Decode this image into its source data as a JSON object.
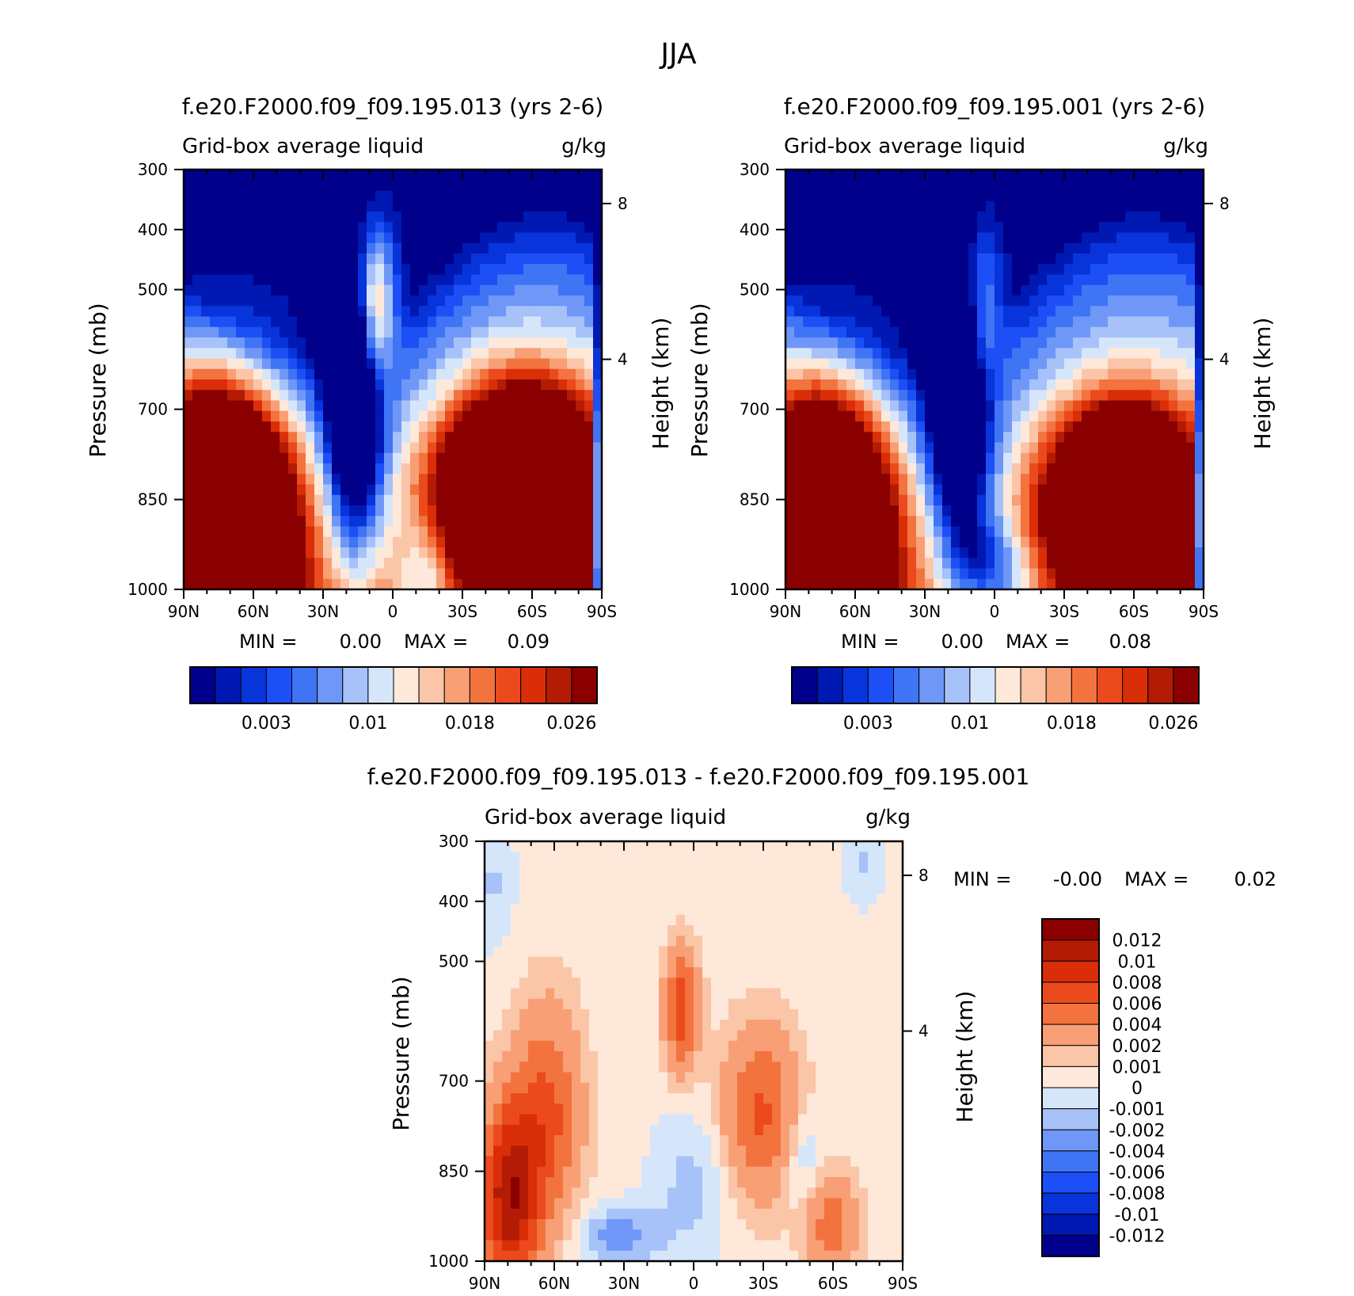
{
  "figure": {
    "title": "JJA"
  },
  "chart_data": [
    {
      "type": "heatmap",
      "title": "f.e20.F2000.f09_f09.195.013 (yrs 2-6)",
      "subtitle": "Grid-box average liquid",
      "units": "g/kg",
      "ylabel": "Pressure (mb)",
      "y2label": "Height (km)",
      "xticks": [
        "90N",
        "60N",
        "30N",
        "0",
        "30S",
        "60S",
        "90S"
      ],
      "yticks": [
        "300",
        "400",
        "500",
        "700",
        "850",
        "1000"
      ],
      "y2ticks": [
        "8",
        "4"
      ],
      "ylim": [
        1000,
        300
      ],
      "stats": {
        "min_label": "MIN =",
        "min": "0.00",
        "max_label": "MAX =",
        "max": "0.09"
      },
      "colorbar_labels": [
        "0.003",
        "0.01",
        "0.018",
        "0.026"
      ],
      "colors": [
        "#00008a",
        "#0019b2",
        "#0834dc",
        "#1c4ff5",
        "#3f74f5",
        "#6f97f7",
        "#a7c1f9",
        "#d6e6fa",
        "#fde8d9",
        "#fbc5a8",
        "#f89f76",
        "#f3733f",
        "#eb4a1c",
        "#d92e08",
        "#b31b05",
        "#8a0000"
      ]
    },
    {
      "type": "heatmap",
      "title": "f.e20.F2000.f09_f09.195.001 (yrs 2-6)",
      "subtitle": "Grid-box average liquid",
      "units": "g/kg",
      "ylabel": "Pressure (mb)",
      "y2label": "Height (km)",
      "xticks": [
        "90N",
        "60N",
        "30N",
        "0",
        "30S",
        "60S",
        "90S"
      ],
      "yticks": [
        "300",
        "400",
        "500",
        "700",
        "850",
        "1000"
      ],
      "y2ticks": [
        "8",
        "4"
      ],
      "ylim": [
        1000,
        300
      ],
      "stats": {
        "min_label": "MIN =",
        "min": "0.00",
        "max_label": "MAX =",
        "max": "0.08"
      },
      "colorbar_labels": [
        "0.003",
        "0.01",
        "0.018",
        "0.026"
      ],
      "colors": [
        "#00008a",
        "#0019b2",
        "#0834dc",
        "#1c4ff5",
        "#3f74f5",
        "#6f97f7",
        "#a7c1f9",
        "#d6e6fa",
        "#fde8d9",
        "#fbc5a8",
        "#f89f76",
        "#f3733f",
        "#eb4a1c",
        "#d92e08",
        "#b31b05",
        "#8a0000"
      ]
    },
    {
      "type": "heatmap",
      "title": "f.e20.F2000.f09_f09.195.013 - f.e20.F2000.f09_f09.195.001",
      "subtitle": "Grid-box average liquid",
      "units": "g/kg",
      "ylabel": "Pressure (mb)",
      "y2label": "Height (km)",
      "xticks": [
        "90N",
        "60N",
        "30N",
        "0",
        "30S",
        "60S",
        "90S"
      ],
      "yticks": [
        "300",
        "400",
        "500",
        "700",
        "850",
        "1000"
      ],
      "y2ticks": [
        "8",
        "4"
      ],
      "ylim": [
        1000,
        300
      ],
      "stats": {
        "min_label": "MIN =",
        "min": "-0.00",
        "max_label": "MAX =",
        "max": "0.02"
      },
      "colorbar_labels": [
        "0.012",
        "0.01",
        "0.008",
        "0.006",
        "0.004",
        "0.002",
        "0.001",
        "0",
        "-0.001",
        "-0.002",
        "-0.004",
        "-0.006",
        "-0.008",
        "-0.01",
        "-0.012"
      ],
      "colors": [
        "#8a0000",
        "#b31b05",
        "#d92e08",
        "#eb4a1c",
        "#f3733f",
        "#f89f76",
        "#fbc5a8",
        "#fde8d9",
        "#d6e6fa",
        "#a7c1f9",
        "#6f97f7",
        "#3f74f5",
        "#1c4ff5",
        "#0834dc",
        "#0019b2",
        "#00008a"
      ]
    }
  ]
}
